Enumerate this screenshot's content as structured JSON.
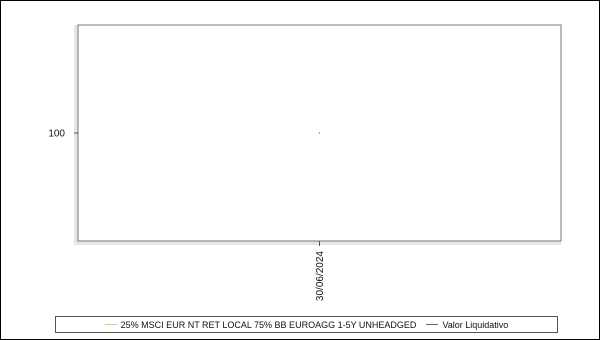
{
  "chart_data": {
    "type": "line",
    "title": "",
    "xlabel": "",
    "ylabel": "",
    "x": [
      "30/06/2024"
    ],
    "y_ticks": [
      100
    ],
    "series": [
      {
        "name": "25% MSCI EUR NT RET LOCAL 75% BB EUROAGG 1-5Y UNHEADGED",
        "color": "#f0c27a",
        "values": [
          100
        ]
      },
      {
        "name": "Valor Liquidativo",
        "color": "#4a7a4a",
        "values": [
          100
        ]
      }
    ],
    "legend_position": "bottom",
    "grid": false
  }
}
